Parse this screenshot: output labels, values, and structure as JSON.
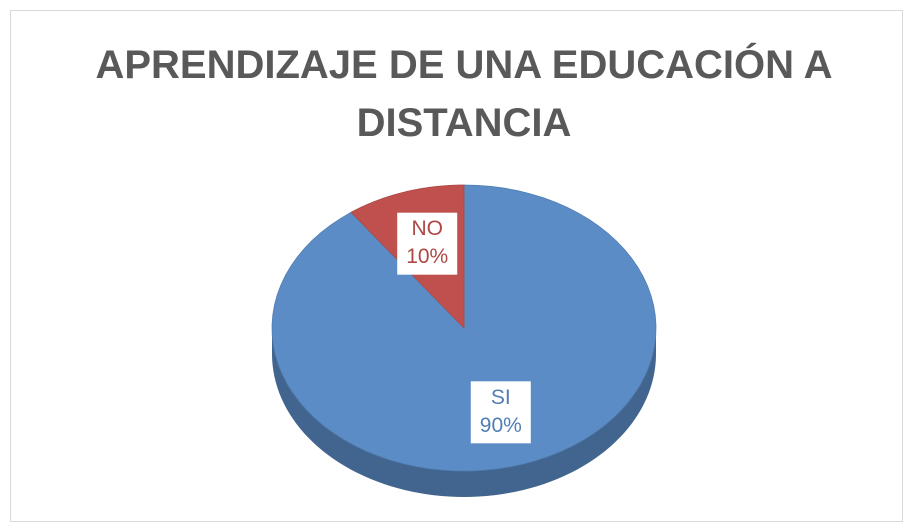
{
  "chart_data": {
    "type": "pie",
    "title": "APRENDIZAJE DE UNA EDUCACIÓN A DISTANCIA",
    "categories": [
      "SI",
      "NO"
    ],
    "values": [
      90,
      10
    ],
    "value_labels": [
      "90%",
      "10%"
    ],
    "colors": [
      "#5b8cc6",
      "#c0504d"
    ]
  }
}
